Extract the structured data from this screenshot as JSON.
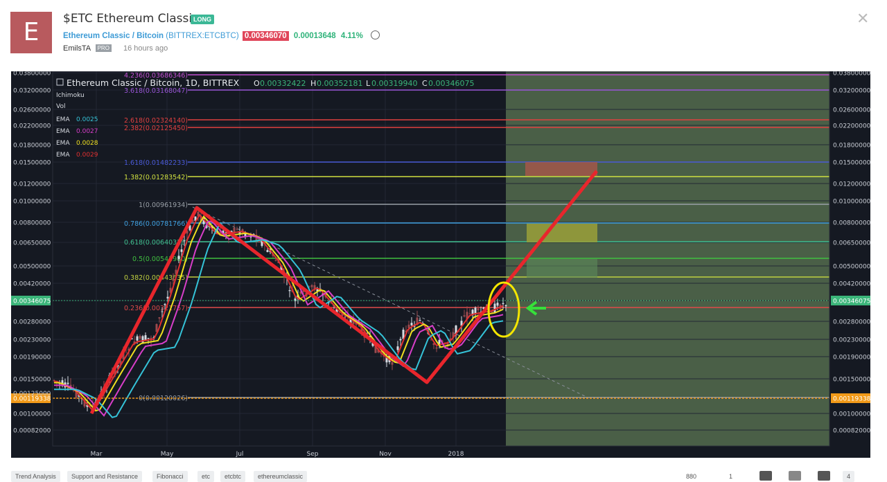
{
  "header": {
    "avatar_letter": "E",
    "title": "$ETC Ethereum Classic",
    "badge": "LONG",
    "symbol_name": "Ethereum Classic / Bitcoin",
    "symbol_ticker": "(BITTREX:ETCBTC)",
    "price": "0.00346070",
    "change": "0.00013648",
    "change_pct": "4.11%",
    "author": "EmilsTA",
    "author_badge": "PRO",
    "time_ago": "16 hours ago",
    "close_icon": "close-icon",
    "clock_icon": "alarm-clock-icon"
  },
  "chart": {
    "legend_title": "Ethereum Classic / Bitcoin, 1D, BITTREX",
    "ohlc": {
      "o_label": "O",
      "o": "0.00332422",
      "h_label": "H",
      "h": "0.00352181",
      "l_label": "L",
      "l": "0.00319940",
      "c_label": "C",
      "c": "0.00346075"
    },
    "indicators": [
      "Ichimoku",
      "Vol"
    ],
    "emas": [
      {
        "label": "EMA",
        "value": "0.0025",
        "color": "#35c3d8"
      },
      {
        "label": "EMA",
        "value": "0.0027",
        "color": "#d83ec9"
      },
      {
        "label": "EMA",
        "value": "0.0028",
        "color": "#f0e020"
      },
      {
        "label": "EMA",
        "value": "0.0029",
        "color": "#e03030"
      }
    ],
    "price_axis": [
      "0.03800000",
      "0.03200000",
      "0.02600000",
      "0.02200000",
      "0.01800000",
      "0.01500000",
      "0.01200000",
      "0.01000000",
      "0.00800000",
      "0.00650000",
      "0.00500000",
      "0.00420000",
      "0.00346075",
      "0.00280000",
      "0.00230000",
      "0.00190000",
      "0.00150000",
      "0.00119338",
      "0.00100000",
      "0.00082000"
    ],
    "left_axis_extra": [
      "0.00125000"
    ],
    "current_price_label": "0.00346075",
    "support_price_label": "0.00119338",
    "time_axis": [
      "Mar",
      "May",
      "Jul",
      "Sep",
      "Nov",
      "2018"
    ],
    "fib_levels": [
      {
        "label": "4.236(0.03686346)",
        "color": "#c04fd0"
      },
      {
        "label": "3.618(0.03168047)",
        "color": "#9a55d8"
      },
      {
        "label": "2.618(0.02324140)",
        "color": "#e04040"
      },
      {
        "label": "2.382(0.02125450)",
        "color": "#e04040"
      },
      {
        "label": "1.618(0.01482233)",
        "color": "#4a5ad8"
      },
      {
        "label": "1.382(0.01283542)",
        "color": "#d0e040"
      },
      {
        "label": "1(0.00961934)",
        "color": "#9aa0a8"
      },
      {
        "label": "0.786(0.00781766)",
        "color": "#3fa0e0"
      },
      {
        "label": "0.618(0.00640328)",
        "color": "#40c090"
      },
      {
        "label": "0.5(0.00541980)",
        "color": "#40c040"
      },
      {
        "label": "0.382(0.00443635)",
        "color": "#c0d040"
      },
      {
        "label": "0.236(0.00321757)",
        "color": "#e04a4a"
      },
      {
        "label": "0(0.00120026)",
        "color": "#9aa0a8"
      }
    ],
    "colors": {
      "background": "#151922",
      "forecast_zone": "#4a5f47",
      "trend_line": "#e8262c",
      "ellipse": "#f5e600",
      "arrow": "#36e03a",
      "price_tag": "#3bb57a",
      "support_tag": "#f29a18"
    }
  },
  "footer": {
    "tags": [
      "Trend Analysis",
      "Support and Resistance",
      "Fibonacci",
      "etc",
      "etcbtc",
      "ethereumclassic"
    ],
    "views": "880",
    "comments": "1",
    "likes": "4"
  }
}
